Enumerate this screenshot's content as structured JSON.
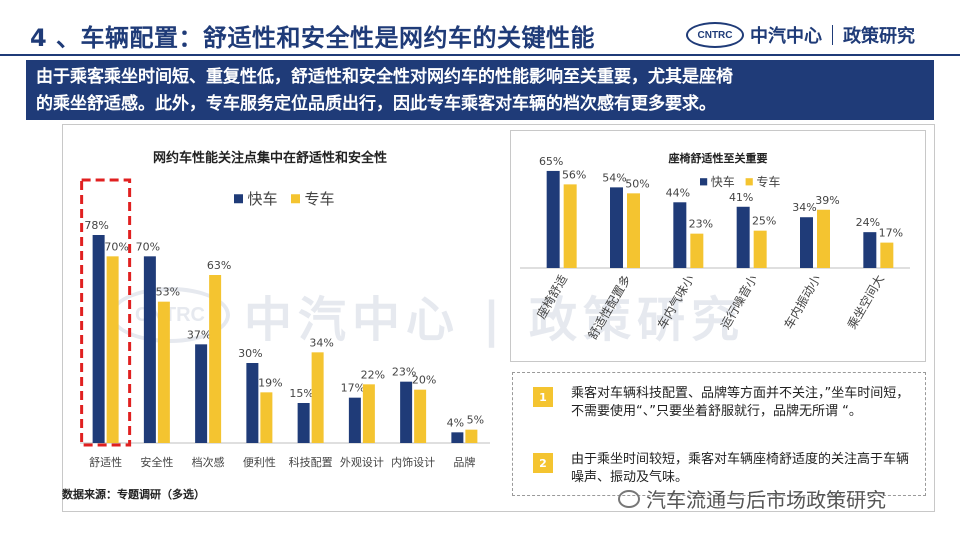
{
  "header": {
    "title": "4 、车辆配置：舒适性和安全性是网约车的关键性能",
    "logo_badge": "CNTRC",
    "logo_org": "中汽中心",
    "logo_dept": "政策研究"
  },
  "banner": {
    "line1": "由于乘客乘坐时间短、重复性低，舒适性和安全性对网约车的性能影响至关重要，尤其是座椅",
    "line2": "的乘坐舒适感。此外，专车服务定位品质出行，因此专车乘客对车辆的档次感有更多要求。"
  },
  "watermark": {
    "badge": "CNTRC",
    "text": "中汽中心 | 政策研究"
  },
  "colors": {
    "navy": "#1f3b78",
    "yellow": "#f4c430",
    "highlight_red": "#e02020"
  },
  "chart_data": [
    {
      "type": "bar",
      "title": "网约车性能关注点集中在舒适性和安全性",
      "categories": [
        "舒适性",
        "安全性",
        "档次感",
        "便利性",
        "科技配置",
        "外观设计",
        "内饰设计",
        "品牌"
      ],
      "series": [
        {
          "name": "快车",
          "values": [
            78,
            70,
            37,
            30,
            15,
            17,
            23,
            4
          ]
        },
        {
          "name": "专车",
          "values": [
            70,
            53,
            63,
            19,
            34,
            22,
            20,
            5
          ]
        }
      ],
      "value_suffix": "%",
      "ylim": [
        0,
        90
      ],
      "highlight_category": "舒适性",
      "legend": "top"
    },
    {
      "type": "bar",
      "title": "座椅舒适性至关重要",
      "categories": [
        "座椅舒适",
        "舒适性配置多",
        "车内气味小",
        "运行噪音小",
        "车内振动小",
        "乘坐空间大"
      ],
      "series": [
        {
          "name": "快车",
          "values": [
            65,
            54,
            44,
            41,
            34,
            24
          ]
        },
        {
          "name": "专车",
          "values": [
            56,
            50,
            23,
            25,
            39,
            17
          ]
        }
      ],
      "value_suffix": "%",
      "ylim": [
        0,
        75
      ],
      "legend": "top-right"
    }
  ],
  "notes": [
    {
      "num": "1",
      "text": "乘客对车辆科技配置、品牌等方面并不关注，”坐车时间短，不需要使用“、”只要坐着舒服就行，品牌无所谓 “。"
    },
    {
      "num": "2",
      "text": "由于乘坐时间较短，乘客对车辆座椅舒适度的关注高于车辆噪声、振动及气味。"
    }
  ],
  "source": "数据来源：专题调研（多选）",
  "footer": {
    "account": "汽车流通与后市场政策研究"
  }
}
